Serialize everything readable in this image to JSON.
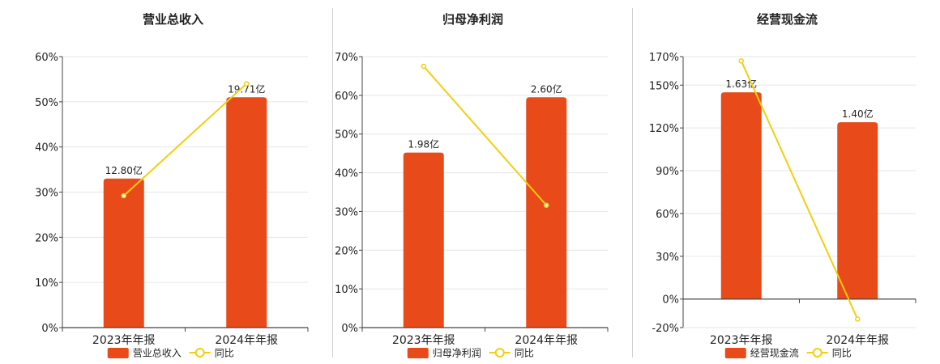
{
  "colors": {
    "bar": "#e84a1a",
    "line": "#f2cf10",
    "grid": "#e6e6e6",
    "axis": "#444444",
    "text": "#222222"
  },
  "legend_line_label": "同比",
  "chart_data": [
    {
      "type": "bar",
      "title": "营业总收入",
      "categories": [
        "2023年年报",
        "2024年年报"
      ],
      "series": [
        {
          "name": "营业总收入",
          "type": "bar",
          "labels": [
            "12.80亿",
            "19.71亿"
          ],
          "values": [
            33,
            51
          ]
        },
        {
          "name": "同比",
          "type": "line",
          "values": [
            29.2,
            54
          ]
        }
      ],
      "ylim": [
        0,
        60
      ],
      "yticks": [
        0,
        10,
        20,
        30,
        40,
        50,
        60
      ],
      "ytick_labels": [
        "0%",
        "10%",
        "20%",
        "30%",
        "40%",
        "50%",
        "60%"
      ],
      "legend": "bottom",
      "grid": true
    },
    {
      "type": "bar",
      "title": "归母净利润",
      "categories": [
        "2023年年报",
        "2024年年报"
      ],
      "series": [
        {
          "name": "归母净利润",
          "type": "bar",
          "labels": [
            "1.98亿",
            "2.60亿"
          ],
          "values": [
            45.2,
            59.5
          ]
        },
        {
          "name": "同比",
          "type": "line",
          "values": [
            67.5,
            31.6
          ]
        }
      ],
      "ylim": [
        0,
        70
      ],
      "yticks": [
        0,
        10,
        20,
        30,
        40,
        50,
        60,
        70
      ],
      "ytick_labels": [
        "0%",
        "10%",
        "20%",
        "30%",
        "40%",
        "50%",
        "60%",
        "70%"
      ],
      "legend": "bottom",
      "grid": true
    },
    {
      "type": "bar",
      "title": "经营现金流",
      "categories": [
        "2023年年报",
        "2024年年报"
      ],
      "series": [
        {
          "name": "经营现金流",
          "type": "bar",
          "labels": [
            "1.63亿",
            "1.40亿"
          ],
          "values": [
            145,
            124
          ]
        },
        {
          "name": "同比",
          "type": "line",
          "values": [
            167,
            -14
          ]
        }
      ],
      "ylim": [
        -20,
        170
      ],
      "yticks": [
        -20,
        0,
        30,
        60,
        90,
        120,
        150,
        170
      ],
      "ytick_labels": [
        "-20%",
        "0%",
        "30%",
        "60%",
        "90%",
        "120%",
        "150%",
        "170%"
      ],
      "legend": "bottom",
      "grid": true
    }
  ]
}
